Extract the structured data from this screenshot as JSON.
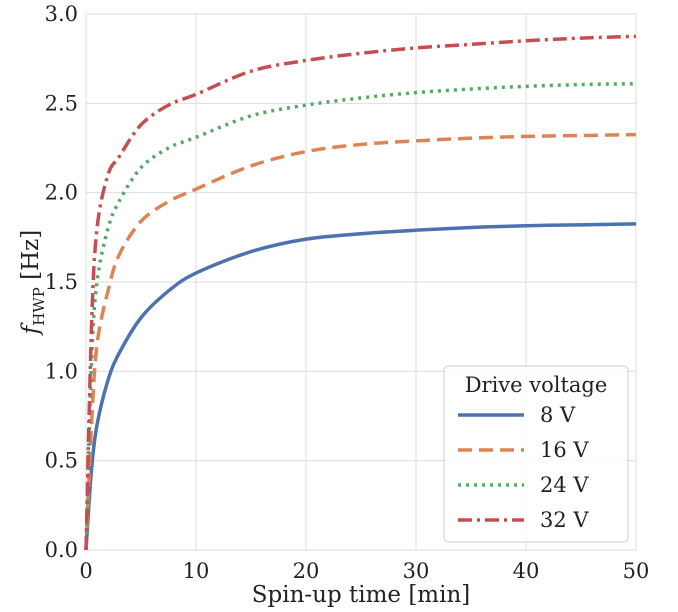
{
  "chart_data": {
    "type": "line",
    "title": "",
    "xlabel": "Spin-up time [min]",
    "ylabel": {
      "main": "f",
      "sub": "HWP",
      "unit": " [Hz]"
    },
    "xlim": [
      0,
      50
    ],
    "ylim": [
      0,
      3.0
    ],
    "xticks": [
      0,
      10,
      20,
      30,
      40,
      50
    ],
    "yticks": [
      0.0,
      0.5,
      1.0,
      1.5,
      2.0,
      2.5,
      3.0
    ],
    "xtick_labels": [
      "0",
      "10",
      "20",
      "30",
      "40",
      "50"
    ],
    "ytick_labels": [
      "0.0",
      "0.5",
      "1.0",
      "1.5",
      "2.0",
      "2.5",
      "3.0"
    ],
    "grid": true,
    "legend": {
      "title": "Drive voltage",
      "placement": "lower-right"
    },
    "x": [
      0,
      0.5,
      1,
      2,
      3,
      5,
      7.5,
      10,
      15,
      20,
      25,
      30,
      35,
      40,
      45,
      50
    ],
    "series": [
      {
        "name": "8 V",
        "color": "#4c72b0",
        "dash": "solid",
        "values": [
          0.0,
          0.45,
          0.7,
          0.95,
          1.1,
          1.3,
          1.45,
          1.55,
          1.67,
          1.74,
          1.77,
          1.79,
          1.805,
          1.815,
          1.82,
          1.825
        ]
      },
      {
        "name": "16 V",
        "color": "#dd8452",
        "dash": "dashed",
        "values": [
          0.0,
          0.7,
          1.15,
          1.45,
          1.65,
          1.84,
          1.95,
          2.02,
          2.15,
          2.23,
          2.27,
          2.29,
          2.305,
          2.315,
          2.32,
          2.325
        ]
      },
      {
        "name": "24 V",
        "color": "#55a868",
        "dash": "dotted",
        "values": [
          0.0,
          1.05,
          1.5,
          1.8,
          1.95,
          2.14,
          2.25,
          2.31,
          2.43,
          2.49,
          2.53,
          2.56,
          2.58,
          2.595,
          2.605,
          2.61
        ]
      },
      {
        "name": "32 V",
        "color": "#c44e52",
        "dash": "dashdot",
        "values": [
          0.0,
          1.25,
          1.8,
          2.1,
          2.2,
          2.38,
          2.49,
          2.55,
          2.68,
          2.74,
          2.78,
          2.81,
          2.83,
          2.85,
          2.865,
          2.875
        ]
      }
    ]
  }
}
